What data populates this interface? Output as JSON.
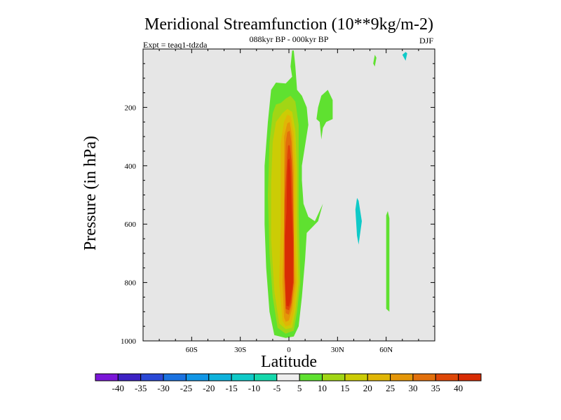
{
  "chart_data": {
    "type": "contour",
    "title": "Meridional Streamfunction (10**9kg/m-2)",
    "subtitle_center": "088kyr BP - 000kyr BP",
    "subtitle_left": "Expt = teaq1-tdzda",
    "subtitle_right": "DJF",
    "xlabel": "Latitude",
    "ylabel": "Pressure (in hPa)",
    "xlim": [
      -90,
      90
    ],
    "ylim": [
      1000,
      0
    ],
    "x_ticks": [
      {
        "value": -60,
        "label": "60S"
      },
      {
        "value": -30,
        "label": "30S"
      },
      {
        "value": 0,
        "label": "0"
      },
      {
        "value": 30,
        "label": "30N"
      },
      {
        "value": 60,
        "label": "60N"
      }
    ],
    "y_ticks": [
      {
        "value": 200,
        "label": "200"
      },
      {
        "value": 400,
        "label": "400"
      },
      {
        "value": 600,
        "label": "600"
      },
      {
        "value": 800,
        "label": "800"
      },
      {
        "value": 1000,
        "label": "1000"
      }
    ],
    "background_color": "#e6e6e6",
    "contour_levels": [
      "-40",
      "-35",
      "-30",
      "-25",
      "-20",
      "-15",
      "-10",
      "-5",
      "5",
      "10",
      "15",
      "20",
      "25",
      "30",
      "35",
      "40"
    ],
    "colorbar_colors": [
      "#7b16d8",
      "#3d22c4",
      "#2a48d6",
      "#1a72e0",
      "#1196e6",
      "#0eb2dc",
      "#0fcac8",
      "#15d8ac",
      "#eeeeee",
      "#5fe130",
      "#a1d615",
      "#cccc05",
      "#e0b606",
      "#e49608",
      "#e2700c",
      "#de4708",
      "#d82c04"
    ],
    "filled_regions": [
      {
        "level_min": 5,
        "color": "#5fe130",
        "polygon": [
          [
            -9,
            980
          ],
          [
            -12,
            900
          ],
          [
            -14,
            750
          ],
          [
            -15,
            600
          ],
          [
            -15,
            400
          ],
          [
            -13,
            250
          ],
          [
            -11,
            140
          ],
          [
            -8,
            115
          ],
          [
            -2,
            118
          ],
          [
            2,
            95
          ],
          [
            1,
            60
          ],
          [
            2,
            5
          ],
          [
            3,
            5
          ],
          [
            4,
            60
          ],
          [
            5,
            140
          ],
          [
            8,
            160
          ],
          [
            11,
            200
          ],
          [
            12,
            260
          ],
          [
            10,
            330
          ],
          [
            8,
            400
          ],
          [
            8,
            450
          ],
          [
            9,
            530
          ],
          [
            12,
            575
          ],
          [
            16,
            590
          ],
          [
            21,
            530
          ],
          [
            18,
            590
          ],
          [
            11,
            630
          ],
          [
            10,
            720
          ],
          [
            8,
            850
          ],
          [
            6,
            950
          ],
          [
            3,
            985
          ],
          [
            -2,
            990
          ]
        ]
      },
      {
        "level_min": 5,
        "color": "#5fe130",
        "polygon": [
          [
            18,
            200
          ],
          [
            20,
            160
          ],
          [
            24,
            140
          ],
          [
            27,
            175
          ],
          [
            27,
            240
          ],
          [
            23,
            250
          ],
          [
            21,
            270
          ],
          [
            20,
            310
          ],
          [
            19,
            250
          ],
          [
            17,
            240
          ]
        ]
      },
      {
        "level_min": 5,
        "color": "#5fe130",
        "polygon": [
          [
            52,
            50
          ],
          [
            53,
            20
          ],
          [
            54,
            30
          ],
          [
            53,
            60
          ]
        ]
      },
      {
        "level_min": 5,
        "color": "#5fe130",
        "polygon": [
          [
            60,
            570
          ],
          [
            61,
            555
          ],
          [
            62,
            580
          ],
          [
            62,
            900
          ],
          [
            60,
            890
          ]
        ]
      },
      {
        "level_min": -10,
        "color": "#0fcac8",
        "polygon": [
          [
            41,
            550
          ],
          [
            42,
            510
          ],
          [
            43,
            520
          ],
          [
            45,
            590
          ],
          [
            43,
            670
          ],
          [
            42,
            640
          ]
        ]
      },
      {
        "level_min": -10,
        "color": "#0fcac8",
        "polygon": [
          [
            70,
            20
          ],
          [
            72,
            10
          ],
          [
            73,
            15
          ],
          [
            72,
            40
          ]
        ]
      },
      {
        "level_min": 10,
        "color": "#a1d615",
        "polygon": [
          [
            -7,
            955
          ],
          [
            -10,
            850
          ],
          [
            -12,
            700
          ],
          [
            -13,
            500
          ],
          [
            -12,
            320
          ],
          [
            -10,
            220
          ],
          [
            -8,
            190
          ],
          [
            -5,
            185
          ],
          [
            -2,
            170
          ],
          [
            1,
            160
          ],
          [
            4,
            180
          ],
          [
            6,
            260
          ],
          [
            6,
            400
          ],
          [
            6,
            560
          ],
          [
            7,
            800
          ],
          [
            5,
            900
          ],
          [
            3,
            965
          ],
          [
            -2,
            975
          ]
        ]
      },
      {
        "level_min": 15,
        "color": "#cccc05",
        "polygon": [
          [
            -6,
            940
          ],
          [
            -9,
            830
          ],
          [
            -11,
            650
          ],
          [
            -11,
            460
          ],
          [
            -10,
            320
          ],
          [
            -8,
            250
          ],
          [
            -4,
            220
          ],
          [
            -1,
            205
          ],
          [
            2,
            215
          ],
          [
            4,
            280
          ],
          [
            5,
            420
          ],
          [
            5,
            620
          ],
          [
            6,
            800
          ],
          [
            4,
            900
          ],
          [
            2,
            955
          ],
          [
            -2,
            960
          ]
        ]
      },
      {
        "level_min": 20,
        "color": "#e0b606",
        "polygon": [
          [
            -4,
            930
          ],
          [
            -6,
            800
          ],
          [
            -5,
            600
          ],
          [
            -5,
            450
          ],
          [
            -5,
            320
          ],
          [
            -3,
            250
          ],
          [
            -1,
            225
          ],
          [
            1,
            230
          ],
          [
            3,
            290
          ],
          [
            4,
            420
          ],
          [
            4,
            650
          ],
          [
            5,
            800
          ],
          [
            3,
            900
          ],
          [
            1,
            945
          ],
          [
            -2,
            950
          ]
        ]
      },
      {
        "level_min": 25,
        "color": "#e49608",
        "polygon": [
          [
            -3,
            920
          ],
          [
            -4,
            800
          ],
          [
            -3,
            600
          ],
          [
            -3,
            420
          ],
          [
            -3,
            300
          ],
          [
            -1,
            255
          ],
          [
            0.5,
            250
          ],
          [
            2,
            300
          ],
          [
            3,
            420
          ],
          [
            3,
            650
          ],
          [
            4,
            800
          ],
          [
            2,
            890
          ],
          [
            0,
            930
          ],
          [
            -2,
            935
          ]
        ]
      },
      {
        "level_min": 30,
        "color": "#e2700c",
        "polygon": [
          [
            -2,
            905
          ],
          [
            -3,
            780
          ],
          [
            -3,
            600
          ],
          [
            -2.5,
            420
          ],
          [
            -2,
            320
          ],
          [
            -1,
            285
          ],
          [
            0.5,
            280
          ],
          [
            1.5,
            320
          ],
          [
            2.5,
            430
          ],
          [
            3,
            650
          ],
          [
            3,
            800
          ],
          [
            1.5,
            880
          ],
          [
            0,
            910
          ]
        ]
      },
      {
        "level_min": 35,
        "color": "#de4708",
        "polygon": [
          [
            -2,
            890
          ],
          [
            -2.5,
            780
          ],
          [
            -2.5,
            620
          ],
          [
            -2.5,
            520
          ],
          [
            -1,
            360
          ],
          [
            -0.5,
            330
          ],
          [
            0.5,
            330
          ],
          [
            1.5,
            380
          ],
          [
            2,
            460
          ],
          [
            3,
            650
          ],
          [
            3,
            800
          ],
          [
            1.5,
            870
          ],
          [
            0,
            895
          ]
        ]
      },
      {
        "level_min": 40,
        "color": "#d82c04",
        "polygon": [
          [
            -1.5,
            880
          ],
          [
            -2.5,
            780
          ],
          [
            -2.5,
            640
          ],
          [
            -1.5,
            560
          ],
          [
            -1,
            420
          ],
          [
            -0.5,
            380
          ],
          [
            0.3,
            375
          ],
          [
            1,
            420
          ],
          [
            1.5,
            520
          ],
          [
            2.5,
            660
          ],
          [
            2.5,
            800
          ],
          [
            1,
            860
          ],
          [
            0,
            882
          ]
        ]
      }
    ]
  }
}
